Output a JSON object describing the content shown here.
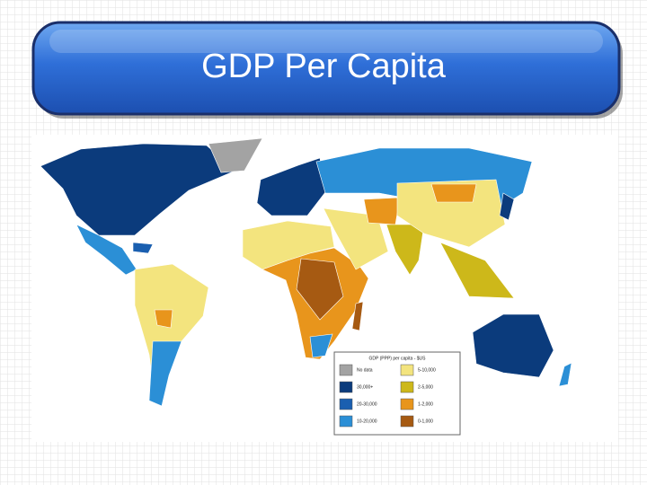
{
  "title": "GDP Per Capita",
  "legend": {
    "title": "GDP (PPP) per capita - $US",
    "items": [
      {
        "label": "No data",
        "color": "#a3a3a3"
      },
      {
        "label": "30,000+",
        "color": "#0b3b7c"
      },
      {
        "label": "20-30,000",
        "color": "#1a5fb0"
      },
      {
        "label": "10-20,000",
        "color": "#2b8fd6"
      },
      {
        "label": "5-10,000",
        "color": "#f3e47e"
      },
      {
        "label": "2-5,000",
        "color": "#cdb81a"
      },
      {
        "label": "1-2,000",
        "color": "#e8951c"
      },
      {
        "label": "0-1,000",
        "color": "#a65a12"
      }
    ]
  }
}
